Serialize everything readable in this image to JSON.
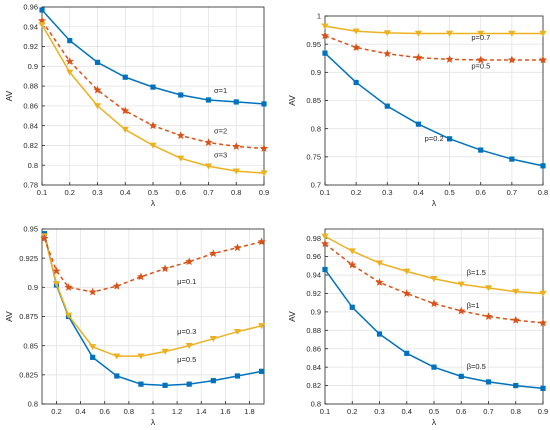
{
  "figure": {
    "colors": {
      "blue": "#0072BD",
      "orange": "#D95319",
      "yellow": "#EDB120",
      "axis": "#262626",
      "grid": "#e3e3e3"
    }
  },
  "chart_data": [
    {
      "type": "line",
      "xlabel": "λ",
      "ylabel": "AV",
      "xlim": [
        0.1,
        0.9
      ],
      "ylim": [
        0.78,
        0.96
      ],
      "xticks": [
        0.1,
        0.2,
        0.3,
        0.4,
        0.5,
        0.6,
        0.7,
        0.8,
        0.9
      ],
      "xtick_labels": [
        "0.1",
        "0.2",
        "0.3",
        "0.4",
        "0.5",
        "0.6",
        "0.7",
        "0.8",
        "0.9"
      ],
      "yticks": [
        0.78,
        0.8,
        0.82,
        0.84,
        0.86,
        0.88,
        0.9,
        0.92,
        0.94,
        0.96
      ],
      "ytick_labels": [
        "0.78",
        "0.8",
        "0.82",
        "0.84",
        "0.86",
        "0.88",
        "0.9",
        "0.92",
        "0.94",
        "0.96"
      ],
      "grid": true,
      "x": [
        0.1,
        0.2,
        0.3,
        0.4,
        0.5,
        0.6,
        0.7,
        0.8,
        0.9
      ],
      "series": [
        {
          "color": "#0072BD",
          "marker": "square",
          "dashed": false,
          "values": [
            0.957,
            0.926,
            0.904,
            0.889,
            0.879,
            0.871,
            0.866,
            0.864,
            0.862
          ]
        },
        {
          "color": "#D95319",
          "marker": "star",
          "dashed": true,
          "values": [
            0.946,
            0.905,
            0.876,
            0.855,
            0.84,
            0.83,
            0.823,
            0.819,
            0.817
          ]
        },
        {
          "color": "#EDB120",
          "marker": "triangle",
          "dashed": false,
          "values": [
            0.942,
            0.894,
            0.86,
            0.836,
            0.82,
            0.807,
            0.799,
            0.794,
            0.792
          ]
        }
      ],
      "annotations": [
        {
          "text": "σ=1",
          "x": 0.72,
          "y": 0.873
        },
        {
          "text": "σ=2",
          "x": 0.72,
          "y": 0.832
        },
        {
          "text": "σ=3",
          "x": 0.72,
          "y": 0.808
        }
      ]
    },
    {
      "type": "line",
      "xlabel": "λ",
      "ylabel": "AV",
      "xlim": [
        0.1,
        0.8
      ],
      "ylim": [
        0.7,
        1.0
      ],
      "xticks": [
        0.1,
        0.2,
        0.3,
        0.4,
        0.5,
        0.6,
        0.7,
        0.8
      ],
      "xtick_labels": [
        "0.1",
        "0.2",
        "0.3",
        "0.4",
        "0.5",
        "0.6",
        "0.7",
        "0.8"
      ],
      "yticks": [
        0.7,
        0.75,
        0.8,
        0.85,
        0.9,
        0.95,
        1.0
      ],
      "ytick_labels": [
        "0.7",
        "0.75",
        "0.8",
        "0.85",
        "0.9",
        "0.95",
        "1"
      ],
      "grid": true,
      "x": [
        0.1,
        0.2,
        0.3,
        0.4,
        0.5,
        0.6,
        0.7,
        0.8
      ],
      "series": [
        {
          "color": "#0072BD",
          "marker": "square",
          "dashed": false,
          "values": [
            0.934,
            0.882,
            0.84,
            0.808,
            0.782,
            0.762,
            0.746,
            0.734
          ]
        },
        {
          "color": "#D95319",
          "marker": "star",
          "dashed": true,
          "values": [
            0.965,
            0.944,
            0.933,
            0.926,
            0.923,
            0.922,
            0.922,
            0.922
          ]
        },
        {
          "color": "#EDB120",
          "marker": "triangle",
          "dashed": false,
          "values": [
            0.982,
            0.973,
            0.97,
            0.969,
            0.969,
            0.969,
            0.969,
            0.969
          ]
        }
      ],
      "annotations": [
        {
          "text": "p=0.7",
          "x": 0.57,
          "y": 0.957
        },
        {
          "text": "p=0.5",
          "x": 0.57,
          "y": 0.907
        },
        {
          "text": "p=0.2",
          "x": 0.42,
          "y": 0.778
        }
      ]
    },
    {
      "type": "line",
      "xlabel": "λ",
      "ylabel": "AV",
      "xlim": [
        0.08,
        1.92
      ],
      "ylim": [
        0.8,
        0.95
      ],
      "xticks": [
        0.2,
        0.4,
        0.6,
        0.8,
        1.0,
        1.2,
        1.4,
        1.6,
        1.8
      ],
      "xtick_labels": [
        "0.2",
        "0.4",
        "0.6",
        "0.8",
        "1",
        "1.2",
        "1.4",
        "1.6",
        "1.8"
      ],
      "yticks": [
        0.8,
        0.825,
        0.85,
        0.875,
        0.9,
        0.925,
        0.95
      ],
      "ytick_labels": [
        "0.8",
        "0.825",
        "0.85",
        "0.875",
        "0.9",
        "0.925",
        "0.95"
      ],
      "grid": true,
      "x": [
        0.1,
        0.2,
        0.3,
        0.5,
        0.7,
        0.9,
        1.1,
        1.3,
        1.5,
        1.7,
        1.9
      ],
      "series": [
        {
          "color": "#0072BD",
          "marker": "square",
          "dashed": false,
          "values": [
            0.946,
            0.902,
            0.875,
            0.84,
            0.824,
            0.817,
            0.816,
            0.817,
            0.82,
            0.824,
            0.828
          ]
        },
        {
          "color": "#EDB120",
          "marker": "triangle",
          "dashed": false,
          "values": [
            0.944,
            0.903,
            0.876,
            0.849,
            0.841,
            0.841,
            0.845,
            0.85,
            0.856,
            0.862,
            0.867
          ]
        },
        {
          "color": "#D95319",
          "marker": "star",
          "dashed": true,
          "values": [
            0.942,
            0.914,
            0.9,
            0.896,
            0.901,
            0.909,
            0.916,
            0.922,
            0.929,
            0.934,
            0.939
          ]
        }
      ],
      "annotations": [
        {
          "text": "μ=0.1",
          "x": 1.2,
          "y": 0.903
        },
        {
          "text": "μ=0.3",
          "x": 1.2,
          "y": 0.86
        },
        {
          "text": "μ=0.5",
          "x": 1.2,
          "y": 0.836
        }
      ]
    },
    {
      "type": "line",
      "xlabel": "λ",
      "ylabel": "AV",
      "xlim": [
        0.1,
        0.9
      ],
      "ylim": [
        0.8,
        0.99
      ],
      "xticks": [
        0.1,
        0.2,
        0.3,
        0.4,
        0.5,
        0.6,
        0.7,
        0.8,
        0.9
      ],
      "xtick_labels": [
        "0.1",
        "0.2",
        "0.3",
        "0.4",
        "0.5",
        "0.6",
        "0.7",
        "0.8",
        "0.9"
      ],
      "yticks": [
        0.8,
        0.82,
        0.84,
        0.86,
        0.88,
        0.9,
        0.92,
        0.94,
        0.96,
        0.98
      ],
      "ytick_labels": [
        "0.8",
        "0.82",
        "0.84",
        "0.86",
        "0.88",
        "0.9",
        "0.92",
        "0.94",
        "0.96",
        "0.98"
      ],
      "grid": true,
      "x": [
        0.1,
        0.2,
        0.3,
        0.4,
        0.5,
        0.6,
        0.7,
        0.8,
        0.9
      ],
      "series": [
        {
          "color": "#0072BD",
          "marker": "square",
          "dashed": false,
          "values": [
            0.946,
            0.905,
            0.876,
            0.855,
            0.84,
            0.83,
            0.824,
            0.82,
            0.817
          ]
        },
        {
          "color": "#D95319",
          "marker": "star",
          "dashed": true,
          "values": [
            0.974,
            0.951,
            0.932,
            0.92,
            0.909,
            0.901,
            0.895,
            0.891,
            0.888
          ]
        },
        {
          "color": "#EDB120",
          "marker": "triangle",
          "dashed": false,
          "values": [
            0.982,
            0.966,
            0.953,
            0.944,
            0.936,
            0.93,
            0.926,
            0.922,
            0.92
          ]
        }
      ],
      "annotations": [
        {
          "text": "β=1.5",
          "x": 0.62,
          "y": 0.94
        },
        {
          "text": "β=1",
          "x": 0.62,
          "y": 0.904
        },
        {
          "text": "β=0.5",
          "x": 0.62,
          "y": 0.838
        }
      ]
    }
  ]
}
